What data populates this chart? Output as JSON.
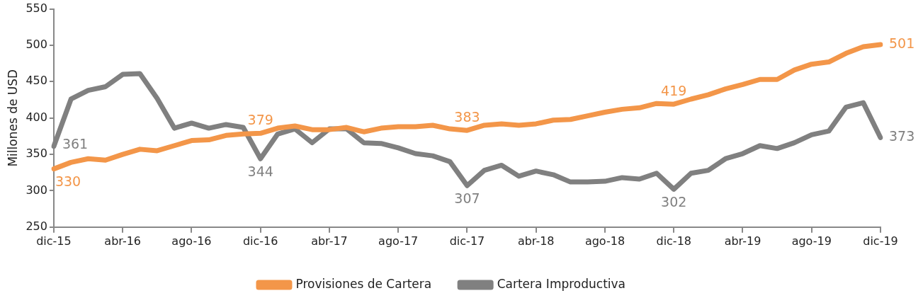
{
  "chart_data": {
    "type": "line",
    "ylabel": "Millones de USD",
    "categories": [
      "dic-15",
      null,
      null,
      null,
      "abr-16",
      null,
      null,
      null,
      "ago-16",
      null,
      null,
      null,
      "dic-16",
      null,
      null,
      null,
      "abr-17",
      null,
      null,
      null,
      "ago-17",
      null,
      null,
      null,
      "dic-17",
      null,
      null,
      null,
      "abr-18",
      null,
      null,
      null,
      "ago-18",
      null,
      null,
      null,
      "dic-18",
      null,
      null,
      null,
      "abr-19",
      null,
      null,
      null,
      "ago-19",
      null,
      null,
      null,
      "dic-19"
    ],
    "series": [
      {
        "name": "Provisiones de Cartera",
        "color": "#f39649",
        "values": [
          330,
          339,
          344,
          342,
          350,
          357,
          355,
          362,
          369,
          370,
          376,
          378,
          379,
          386,
          389,
          384,
          384,
          387,
          381,
          386,
          388,
          388,
          390,
          385,
          383,
          390,
          392,
          390,
          392,
          397,
          398,
          403,
          408,
          412,
          414,
          420,
          419,
          426,
          432,
          440,
          446,
          453,
          453,
          466,
          474,
          477,
          489,
          498,
          501
        ],
        "value_labels": [
          "330",
          null,
          null,
          null,
          null,
          null,
          null,
          null,
          null,
          null,
          null,
          null,
          "379",
          null,
          null,
          null,
          null,
          null,
          null,
          null,
          null,
          null,
          null,
          null,
          "383",
          null,
          null,
          null,
          null,
          null,
          null,
          null,
          null,
          null,
          null,
          null,
          "419",
          null,
          null,
          null,
          null,
          null,
          null,
          null,
          null,
          null,
          null,
          null,
          "501"
        ]
      },
      {
        "name": "Cartera Improductiva",
        "color": "#808080",
        "values": [
          361,
          426,
          438,
          443,
          460,
          461,
          427,
          386,
          393,
          386,
          391,
          387,
          344,
          378,
          385,
          366,
          385,
          385,
          366,
          365,
          359,
          351,
          348,
          340,
          307,
          328,
          335,
          320,
          327,
          322,
          312,
          312,
          313,
          318,
          316,
          324,
          302,
          324,
          328,
          344,
          351,
          362,
          358,
          366,
          377,
          382,
          415,
          421,
          373
        ],
        "value_labels": [
          "361",
          null,
          null,
          null,
          null,
          null,
          null,
          null,
          null,
          null,
          null,
          null,
          "344",
          null,
          null,
          null,
          null,
          null,
          null,
          null,
          null,
          null,
          null,
          null,
          "307",
          null,
          null,
          null,
          null,
          null,
          null,
          null,
          null,
          null,
          null,
          null,
          "302",
          null,
          null,
          null,
          null,
          null,
          null,
          null,
          null,
          null,
          null,
          null,
          "373"
        ]
      }
    ],
    "ylim": [
      250,
      550
    ],
    "yticks": [
      250,
      300,
      350,
      400,
      450,
      500,
      550
    ],
    "grid": false,
    "legend": "bottom",
    "marker": "none",
    "line_style": "solid"
  }
}
